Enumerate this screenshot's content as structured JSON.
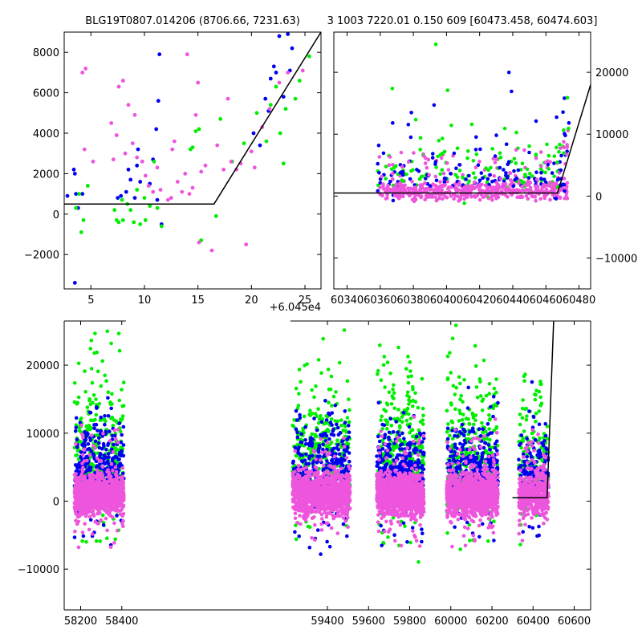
{
  "colors": {
    "blue": "#0000ee",
    "green": "#00ee00",
    "pink": "#ee55dd",
    "model": "#000000"
  },
  "chart_data": [
    {
      "type": "scatter",
      "title": "BLG19T0807.014206 (8706.66, 7231.63)",
      "xlim": [
        2.5,
        26.5
      ],
      "ylim": [
        -3700,
        9000
      ],
      "xticks": [
        5,
        10,
        15,
        20,
        25
      ],
      "yticks": [
        -2000,
        0,
        2000,
        4000,
        6000,
        8000
      ],
      "ytick_side": "left",
      "model_line": [
        [
          2.5,
          500
        ],
        [
          16.5,
          500
        ],
        [
          26.5,
          9000
        ]
      ],
      "series": [
        {
          "color": "blue",
          "points": [
            [
              2.8,
              900
            ],
            [
              3.4,
              2200
            ],
            [
              3.5,
              2000
            ],
            [
              3.6,
              1000
            ],
            [
              3.8,
              300
            ],
            [
              4.2,
              1000
            ],
            [
              7.5,
              800
            ],
            [
              7.8,
              900
            ],
            [
              8.3,
              1100
            ],
            [
              8.5,
              2200
            ],
            [
              8.7,
              1700
            ],
            [
              9.1,
              800
            ],
            [
              9.3,
              2400
            ],
            [
              9.4,
              3200
            ],
            [
              9.6,
              1600
            ],
            [
              10.5,
              1500
            ],
            [
              10.8,
              2700
            ],
            [
              11.1,
              4200
            ],
            [
              11.2,
              700
            ],
            [
              11.3,
              5600
            ],
            [
              11.4,
              7900
            ],
            [
              11.6,
              -500
            ],
            [
              20.2,
              4000
            ],
            [
              20.8,
              3400
            ],
            [
              21.3,
              5700
            ],
            [
              21.6,
              5100
            ],
            [
              21.8,
              6700
            ],
            [
              22.1,
              7300
            ],
            [
              22.3,
              7000
            ],
            [
              22.6,
              8800
            ],
            [
              23.0,
              5800
            ],
            [
              23.4,
              8900
            ],
            [
              23.6,
              7100
            ],
            [
              23.8,
              8200
            ],
            [
              3.5,
              -3400
            ]
          ]
        },
        {
          "color": "green",
          "points": [
            [
              3.6,
              300
            ],
            [
              3.9,
              1000
            ],
            [
              4.1,
              -900
            ],
            [
              4.3,
              -300
            ],
            [
              4.7,
              1400
            ],
            [
              7.2,
              200
            ],
            [
              7.4,
              -300
            ],
            [
              7.6,
              -400
            ],
            [
              7.9,
              700
            ],
            [
              8.0,
              -300
            ],
            [
              8.4,
              500
            ],
            [
              8.7,
              200
            ],
            [
              9.0,
              -400
            ],
            [
              9.3,
              1200
            ],
            [
              9.6,
              -500
            ],
            [
              10.0,
              800
            ],
            [
              10.1,
              -300
            ],
            [
              10.5,
              400
            ],
            [
              10.9,
              2600
            ],
            [
              11.2,
              300
            ],
            [
              11.6,
              -600
            ],
            [
              14.3,
              3200
            ],
            [
              14.5,
              3300
            ],
            [
              14.8,
              4100
            ],
            [
              15.1,
              4200
            ],
            [
              15.3,
              -1300
            ],
            [
              16.7,
              -100
            ],
            [
              17.1,
              4700
            ],
            [
              18.2,
              2600
            ],
            [
              19.3,
              3500
            ],
            [
              20.5,
              5000
            ],
            [
              21.4,
              3600
            ],
            [
              21.8,
              5400
            ],
            [
              22.3,
              6300
            ],
            [
              22.7,
              4000
            ],
            [
              23.0,
              2500
            ],
            [
              23.2,
              5200
            ],
            [
              24.1,
              5700
            ],
            [
              24.5,
              6600
            ],
            [
              25.4,
              7800
            ]
          ]
        },
        {
          "color": "pink",
          "points": [
            [
              4.2,
              7000
            ],
            [
              4.5,
              7200
            ],
            [
              4.4,
              3200
            ],
            [
              5.2,
              2600
            ],
            [
              6.9,
              4500
            ],
            [
              7.1,
              2700
            ],
            [
              7.4,
              3900
            ],
            [
              7.6,
              6300
            ],
            [
              8.0,
              6600
            ],
            [
              8.2,
              3000
            ],
            [
              8.5,
              5400
            ],
            [
              8.9,
              3500
            ],
            [
              9.1,
              4900
            ],
            [
              9.3,
              2800
            ],
            [
              9.8,
              2600
            ],
            [
              10.1,
              1900
            ],
            [
              10.4,
              1400
            ],
            [
              10.8,
              1100
            ],
            [
              11.2,
              2300
            ],
            [
              11.5,
              1200
            ],
            [
              12.2,
              700
            ],
            [
              12.5,
              800
            ],
            [
              12.6,
              3200
            ],
            [
              12.8,
              3600
            ],
            [
              13.1,
              1600
            ],
            [
              13.5,
              1100
            ],
            [
              13.8,
              2000
            ],
            [
              14.0,
              7900
            ],
            [
              14.2,
              1000
            ],
            [
              14.5,
              1300
            ],
            [
              14.8,
              4900
            ],
            [
              15.0,
              6500
            ],
            [
              15.3,
              2100
            ],
            [
              15.7,
              2400
            ],
            [
              16.3,
              -1800
            ],
            [
              16.8,
              3400
            ],
            [
              17.4,
              2200
            ],
            [
              17.8,
              5700
            ],
            [
              18.1,
              2600
            ],
            [
              18.6,
              2200
            ],
            [
              19.0,
              2500
            ],
            [
              19.5,
              -1500
            ],
            [
              20.0,
              3100
            ],
            [
              20.3,
              2300
            ],
            [
              21.0,
              4300
            ],
            [
              21.7,
              5200
            ],
            [
              22.6,
              6500
            ],
            [
              23.4,
              7000
            ],
            [
              24.8,
              7100
            ],
            [
              15.1,
              -1400
            ]
          ]
        }
      ]
    },
    {
      "type": "scatter",
      "title": "3 1003 7220.01 0.150 609 [60473.458, 60474.603]",
      "xlim": [
        60332,
        60487
      ],
      "ylim": [
        -15000,
        26500
      ],
      "xticks": [
        60340,
        60360,
        60380,
        60400,
        60420,
        60440,
        60460,
        60480
      ],
      "yticks": [
        -10000,
        0,
        10000,
        20000
      ],
      "ytick_side": "right",
      "model_line": [
        [
          60332,
          500
        ],
        [
          60467,
          500
        ],
        [
          60487,
          18000
        ]
      ],
      "generated": {
        "x_range": [
          60358,
          60473
        ],
        "band": [
          -1500,
          2500
        ]
      }
    },
    {
      "type": "scatter",
      "offset_label": "+6.045e4",
      "xlim": [
        58120,
        60680
      ],
      "ylim": [
        -16000,
        26500
      ],
      "xticks": [
        58200,
        58400,
        59400,
        59600,
        59800,
        60000,
        60200,
        60400,
        60600
      ],
      "yticks": [
        -10000,
        0,
        10000,
        20000
      ],
      "ytick_side": "left",
      "seasons": [
        [
          58170,
          58410
        ],
        [
          59230,
          59510
        ],
        [
          59640,
          59870
        ],
        [
          59980,
          60230
        ],
        [
          60330,
          60475
        ]
      ],
      "axis_gap": [
        58420,
        59220
      ],
      "model_line": [
        [
          60300,
          500
        ],
        [
          60468,
          500
        ],
        [
          60500,
          26500
        ]
      ]
    }
  ]
}
